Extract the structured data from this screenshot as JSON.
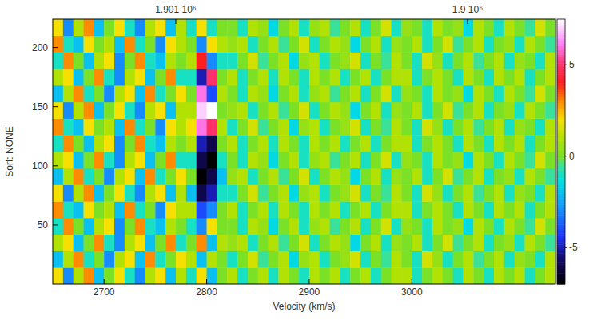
{
  "chart_data": {
    "type": "heatmap",
    "x_label": "Velocity (km/s)",
    "y_label": "Sort: NONE",
    "xlim": [
      2650,
      3140
    ],
    "xticks": [
      2700,
      2800,
      2900,
      3000
    ],
    "ylim": [
      0,
      224
    ],
    "yticks": [
      50,
      100,
      150,
      200
    ],
    "x2lim": [
      1901421.9,
      1899698.6
    ],
    "x2ticks": [
      {
        "value": 1901000,
        "label": "1.901 10⁶"
      },
      {
        "value": 1900000,
        "label": "1.9 10⁶"
      }
    ],
    "x": [
      2655,
      2665,
      2675,
      2685,
      2695,
      2705,
      2715,
      2725,
      2735,
      2745,
      2755,
      2765,
      2775,
      2785,
      2795,
      2805,
      2815,
      2825,
      2835,
      2845,
      2855,
      2865,
      2875,
      2885,
      2895,
      2905,
      2915,
      2925,
      2935,
      2945,
      2955,
      2965,
      2975,
      2985,
      2995,
      3005,
      3015,
      3025,
      3035,
      3045,
      3055,
      3065,
      3075,
      3085,
      3095,
      3105,
      3115,
      3125,
      3135
    ],
    "y": [
      7,
      21,
      35,
      49,
      63,
      77,
      91,
      105,
      119,
      133,
      147,
      161,
      175,
      189,
      203,
      217
    ],
    "cells": [
      [
        2,
        -3,
        1,
        3,
        -2,
        0,
        2,
        -1,
        -3,
        1,
        2,
        -2,
        1,
        -1,
        2,
        -2,
        0,
        1,
        -1,
        0,
        1,
        -1,
        1,
        0,
        -1,
        1,
        0,
        1,
        -1,
        0,
        1,
        -1,
        0,
        1,
        1,
        -1,
        0,
        1,
        0,
        -1,
        1,
        0,
        -1,
        1,
        0,
        1,
        -1,
        0,
        1
      ],
      [
        -2,
        1,
        3,
        -1,
        0,
        -3,
        1,
        2,
        -2,
        3,
        -1,
        0,
        2,
        1,
        -2,
        1,
        0,
        -1,
        0,
        1.5,
        -0.5,
        0,
        1,
        -1.5,
        0.5,
        1,
        -1,
        0,
        0.5,
        1.5,
        -1,
        0,
        -0.5,
        1,
        0,
        -1,
        1.5,
        0.5,
        -1,
        0,
        1,
        -0.5,
        0,
        1,
        -1,
        0.5,
        0,
        -1,
        1
      ],
      [
        1,
        2,
        -2,
        0,
        3,
        -1,
        -3,
        1,
        2,
        -2,
        0,
        3,
        -1,
        0,
        3,
        -2,
        1,
        0.5,
        1,
        -1,
        0,
        1,
        -0.5,
        0,
        1.5,
        -1,
        0,
        1,
        0.5,
        -1.5,
        0,
        1,
        -1,
        0.5,
        0,
        1,
        -1,
        0,
        1.5,
        -0.5,
        0,
        1,
        -1,
        0,
        0.5,
        -1,
        1,
        0,
        -0.5
      ],
      [
        -1,
        3,
        0,
        -2,
        1,
        2,
        -3,
        0,
        3,
        -1,
        -2,
        1,
        0,
        -1,
        -3,
        2,
        0,
        0,
        -1,
        1,
        0.5,
        -1.5,
        0,
        1,
        -1,
        0.5,
        1,
        -0.5,
        0,
        1,
        -1,
        0,
        1.5,
        -1,
        0.5,
        0,
        -1,
        1,
        0,
        0.5,
        -1.5,
        1,
        0,
        -1,
        1,
        0,
        -0.5,
        1.5,
        0
      ],
      [
        3,
        -1,
        -2,
        2,
        0,
        1,
        -2,
        3,
        -1,
        0,
        -3,
        2,
        1,
        1,
        -4,
        -3,
        0,
        1,
        -1,
        0,
        1,
        -1,
        1,
        0,
        -1,
        1,
        0,
        1,
        -1,
        0,
        1,
        -1,
        0,
        1,
        1,
        -1,
        0,
        1,
        0,
        -1,
        1,
        0,
        -1,
        1,
        0,
        1,
        -1,
        0,
        1
      ],
      [
        2,
        -3,
        1,
        3,
        -2,
        0,
        2,
        -1,
        -3,
        1,
        2,
        -2,
        1,
        -2,
        -6,
        -5,
        -1,
        -1,
        0,
        1.5,
        -0.5,
        0,
        1,
        -1.5,
        0.5,
        1,
        -1,
        0,
        0.5,
        1.5,
        -1,
        0,
        -0.5,
        1,
        0,
        -1,
        1.5,
        0.5,
        -1,
        0,
        1,
        -0.5,
        0,
        1,
        -1,
        0.5,
        0,
        -1,
        1
      ],
      [
        -2,
        1,
        3,
        -1,
        0,
        -3,
        1,
        2,
        -2,
        3,
        -1,
        0,
        2,
        0,
        -7,
        -6,
        -2,
        0.5,
        1,
        -1,
        0,
        1,
        -0.5,
        0,
        1.5,
        -1,
        0,
        1,
        0.5,
        -1.5,
        0,
        1,
        -1,
        0.5,
        0,
        1,
        -1,
        0,
        1.5,
        -0.5,
        0,
        1,
        -1,
        0,
        0.5,
        -1,
        1,
        0,
        -0.5
      ],
      [
        1,
        2,
        -2,
        0,
        3,
        -1,
        -3,
        1,
        2,
        -2,
        0,
        3,
        -1,
        -1,
        -6,
        -7,
        -1,
        0,
        -1,
        1,
        0.5,
        -1.5,
        0,
        1,
        -1,
        0.5,
        1,
        -0.5,
        0,
        1,
        -1,
        0,
        1.5,
        -1,
        0.5,
        0,
        -1,
        1,
        0,
        0.5,
        -1.5,
        1,
        0,
        -1,
        1,
        0,
        -0.5,
        1.5,
        0
      ],
      [
        -1,
        3,
        0,
        -2,
        1,
        2,
        -3,
        0,
        3,
        -1,
        -2,
        1,
        0,
        1,
        -5,
        -6,
        0,
        1,
        -1,
        0,
        1,
        -1,
        1,
        0,
        -1,
        1,
        0,
        1,
        -1,
        0,
        1,
        -1,
        0,
        1,
        1,
        -1,
        0,
        1,
        0,
        -1,
        1,
        0,
        -1,
        1,
        0,
        1,
        -1,
        0,
        1
      ],
      [
        3,
        -1,
        -2,
        2,
        0,
        1,
        -2,
        3,
        -1,
        0,
        -3,
        2,
        1,
        2,
        6,
        5,
        1,
        -1,
        0,
        1.5,
        -0.5,
        0,
        1,
        -1.5,
        0.5,
        1,
        -1,
        0,
        0.5,
        1.5,
        -1,
        0,
        -0.5,
        1,
        0,
        -1,
        1.5,
        0.5,
        -1,
        0,
        1,
        -0.5,
        0,
        1,
        -1,
        0.5,
        0,
        -1,
        1
      ],
      [
        2,
        -3,
        1,
        3,
        -2,
        0,
        2,
        -1,
        -3,
        1,
        2,
        -2,
        1,
        1,
        7,
        7.5,
        0,
        0.5,
        1,
        -1,
        0,
        1,
        -0.5,
        0,
        1.5,
        -1,
        0,
        1,
        0.5,
        -1.5,
        0,
        1,
        -1,
        0.5,
        0,
        1,
        -1,
        0,
        1.5,
        -0.5,
        0,
        1,
        -1,
        0,
        0.5,
        -1,
        1,
        0,
        -0.5
      ],
      [
        -2,
        1,
        3,
        -1,
        0,
        -3,
        1,
        2,
        -2,
        3,
        -1,
        0,
        2,
        0,
        6,
        -4,
        1,
        0,
        -1,
        1,
        0.5,
        -1.5,
        0,
        1,
        -1,
        0.5,
        1,
        -0.5,
        0,
        1,
        -1,
        0,
        1.5,
        -1,
        0.5,
        0,
        -1,
        1,
        0,
        0.5,
        -1.5,
        1,
        0,
        -1,
        1,
        0,
        -0.5,
        1.5,
        0
      ],
      [
        1,
        2,
        -2,
        0,
        3,
        -1,
        -3,
        1,
        2,
        -2,
        0,
        3,
        -1,
        -1,
        -5,
        5,
        0,
        1,
        -1,
        0,
        1,
        -1,
        1,
        0,
        -1,
        1,
        0,
        1,
        -1,
        0,
        1,
        -1,
        0,
        1,
        1,
        -1,
        0,
        1,
        0,
        -1,
        1,
        0,
        -1,
        1,
        0,
        1,
        -1,
        0,
        1
      ],
      [
        -1,
        3,
        0,
        -2,
        1,
        2,
        -3,
        0,
        3,
        -1,
        -2,
        1,
        0,
        1,
        4,
        -3,
        -1,
        -1,
        0,
        1.5,
        -0.5,
        0,
        1,
        -1.5,
        0.5,
        1,
        -1,
        0,
        0.5,
        1.5,
        -1,
        0,
        -0.5,
        1,
        0,
        -1,
        1.5,
        0.5,
        -1,
        0,
        1,
        -0.5,
        0,
        1,
        -1,
        0.5,
        0,
        -1,
        1
      ],
      [
        3,
        -1,
        -2,
        2,
        0,
        1,
        -2,
        3,
        -1,
        0,
        -3,
        2,
        1,
        0,
        -3,
        2,
        1,
        0.5,
        1,
        -1,
        0,
        1,
        -0.5,
        0,
        1.5,
        -1,
        0,
        1,
        0.5,
        -1.5,
        0,
        1,
        -1,
        0.5,
        0,
        1,
        -1,
        0,
        1.5,
        -0.5,
        0,
        1,
        -1,
        0,
        0.5,
        -1,
        1,
        0,
        -0.5
      ],
      [
        2,
        -3,
        1,
        3,
        -2,
        0,
        2,
        -1,
        -3,
        1,
        2,
        -2,
        1,
        -1,
        2,
        -1,
        0,
        0,
        -1,
        1,
        0.5,
        -1.5,
        0,
        1,
        -1,
        0.5,
        1,
        -0.5,
        0,
        1,
        -1,
        0,
        1.5,
        -1,
        0.5,
        0,
        -1,
        1,
        0,
        0.5,
        -1.5,
        1,
        0,
        -1,
        1,
        0,
        -0.5,
        1.5,
        0
      ]
    ],
    "colorbar": {
      "range": [
        -7,
        7.5
      ],
      "ticks": [
        -5,
        0,
        5
      ]
    }
  }
}
